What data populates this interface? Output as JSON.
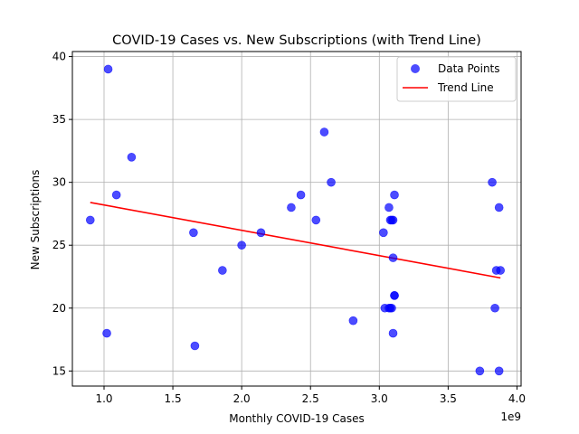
{
  "chart_data": {
    "type": "scatter",
    "title": "COVID-19 Cases vs. New Subscriptions (with Trend Line)",
    "xlabel": "Monthly COVID-19 Cases",
    "ylabel": "New Subscriptions",
    "x_offset_label": "1e9",
    "xlim": [
      0.77,
      4.03
    ],
    "ylim": [
      13.8,
      40.4
    ],
    "x_ticks": [
      1.0,
      1.5,
      2.0,
      2.5,
      3.0,
      3.5,
      4.0
    ],
    "x_tick_labels": [
      "1.0",
      "1.5",
      "2.0",
      "2.5",
      "3.0",
      "3.5",
      "4.0"
    ],
    "y_ticks": [
      15,
      20,
      25,
      30,
      35,
      40
    ],
    "y_tick_labels": [
      "15",
      "20",
      "25",
      "30",
      "35",
      "40"
    ],
    "grid": true,
    "legend_position": "top-right",
    "series": [
      {
        "name": "Data Points",
        "kind": "scatter",
        "color": "#0000ff",
        "x": [
          0.9,
          1.02,
          1.03,
          1.09,
          1.2,
          1.65,
          1.66,
          1.86,
          2.0,
          2.14,
          2.36,
          2.43,
          2.54,
          2.6,
          2.65,
          2.81,
          3.03,
          3.04,
          3.07,
          3.07,
          3.08,
          3.08,
          3.09,
          3.09,
          3.1,
          3.1,
          3.1,
          3.11,
          3.11,
          3.11,
          3.73,
          3.82,
          3.84,
          3.85,
          3.87,
          3.87,
          3.88
        ],
        "y": [
          27,
          18,
          39,
          29,
          32,
          26,
          17,
          23,
          25,
          26,
          28,
          29,
          27,
          34,
          30,
          19,
          26,
          20,
          28,
          20,
          27,
          20,
          20,
          27,
          27,
          24,
          18,
          29,
          21,
          21,
          15,
          30,
          20,
          23,
          28,
          15,
          23
        ]
      },
      {
        "name": "Trend Line",
        "kind": "line",
        "color": "#ff0000",
        "x": [
          0.9,
          3.88
        ],
        "y": [
          28.4,
          22.4
        ]
      }
    ]
  }
}
